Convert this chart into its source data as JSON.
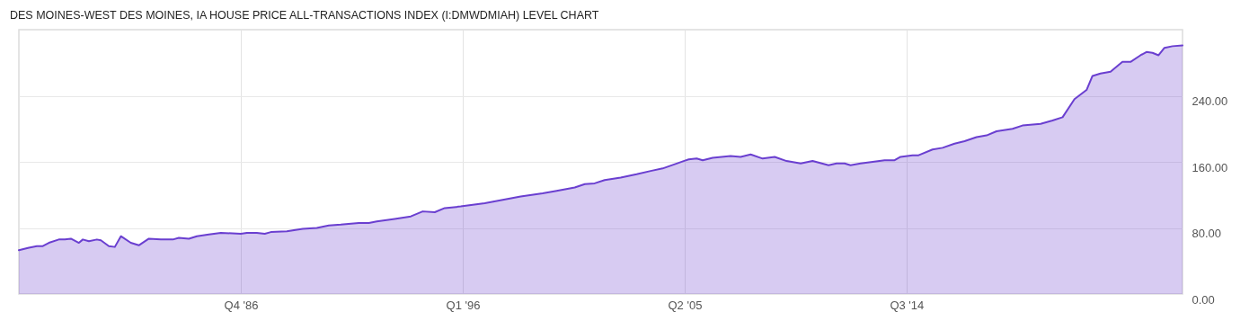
{
  "chart_data": {
    "type": "area",
    "title": "DES MOINES-WEST DES MOINES, IA HOUSE PRICE ALL-TRANSACTIONS INDEX (I:DMWDMIAH) LEVEL CHART",
    "x": [
      "1977-07",
      "1977-12",
      "1978-04",
      "1978-07",
      "1978-10",
      "1979-03",
      "1979-06",
      "1979-09",
      "1980-01",
      "1980-03",
      "1980-06",
      "1980-10",
      "1980-12",
      "1981-04",
      "1981-07",
      "1981-10",
      "1982-03",
      "1982-07",
      "1982-12",
      "1983-06",
      "1983-12",
      "1984-03",
      "1984-08",
      "1984-12",
      "1985-06",
      "1985-12",
      "1986-10",
      "1987-01",
      "1987-06",
      "1987-10",
      "1988-01",
      "1988-09",
      "1989-05",
      "1989-12",
      "1990-06",
      "1990-12",
      "1991-09",
      "1992-02",
      "1992-06",
      "1993-03",
      "1993-11",
      "1994-05",
      "1994-11",
      "1995-04",
      "1995-12",
      "1996-12",
      "1997-09",
      "1998-06",
      "1999-05",
      "1999-12",
      "2000-09",
      "2001-02",
      "2001-07",
      "2001-12",
      "2002-08",
      "2003-04",
      "2003-11",
      "2004-05",
      "2004-12",
      "2005-06",
      "2005-10",
      "2006-01",
      "2006-06",
      "2007-03",
      "2007-08",
      "2008-01",
      "2008-07",
      "2009-01",
      "2009-07",
      "2010-02",
      "2010-08",
      "2011-04",
      "2011-08",
      "2011-12",
      "2012-03",
      "2012-08",
      "2013-02",
      "2013-08",
      "2014-01",
      "2014-04",
      "2014-10",
      "2015-01",
      "2015-08",
      "2016-01",
      "2016-07",
      "2016-12",
      "2017-06",
      "2017-11",
      "2018-04",
      "2018-12",
      "2019-05",
      "2020-02",
      "2020-08",
      "2021-01",
      "2021-07",
      "2022-01",
      "2022-04",
      "2022-08",
      "2023-01",
      "2023-07",
      "2023-11",
      "2024-04",
      "2024-07",
      "2024-10",
      "2025-01",
      "2025-04",
      "2025-08",
      "2026-01"
    ],
    "series": [
      {
        "color": "#6a3fd0",
        "values": [
          53,
          56,
          58,
          58,
          62,
          66,
          66,
          67,
          62,
          66,
          64,
          66,
          65,
          58,
          57,
          70,
          62,
          59,
          67,
          66,
          66,
          68,
          67,
          70,
          72,
          74,
          73,
          74,
          74,
          73,
          75,
          76,
          79,
          80,
          83,
          84,
          86,
          86,
          88,
          91,
          94,
          100,
          99,
          104,
          106,
          110,
          114,
          118,
          122,
          125,
          129,
          133,
          134,
          138,
          141,
          145,
          149,
          152,
          158,
          163,
          164,
          162,
          165,
          167,
          166,
          169,
          164,
          166,
          161,
          158,
          161,
          156,
          158,
          158,
          156,
          158,
          160,
          162,
          162,
          166,
          168,
          168,
          175,
          177,
          182,
          185,
          190,
          192,
          197,
          200,
          204,
          206,
          210,
          214,
          236,
          247,
          264,
          267,
          269,
          281,
          281,
          289,
          293,
          292,
          289,
          298,
          300,
          301
        ]
      }
    ],
    "xlim": [
      "1977-07",
      "2026-01"
    ],
    "xticks": [
      {
        "value": "1986-10",
        "label": "Q4 '86"
      },
      {
        "value": "1996-01",
        "label": "Q1 '96"
      },
      {
        "value": "2005-04",
        "label": "Q2 '05"
      },
      {
        "value": "2014-07",
        "label": "Q3 '14"
      }
    ],
    "ylim": [
      0,
      320
    ],
    "yticks": [
      {
        "value": 0,
        "label": "0.00"
      },
      {
        "value": 80,
        "label": "80.00"
      },
      {
        "value": 160,
        "label": "160.00"
      },
      {
        "value": 240,
        "label": "240.00"
      }
    ],
    "grid": true
  }
}
